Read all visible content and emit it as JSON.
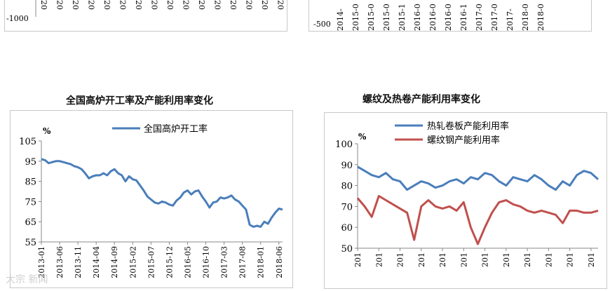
{
  "top_left_fragment": {
    "y_tick": "-1000",
    "x_ticks": [
      "20",
      "20",
      "20",
      "20",
      "20",
      "20",
      "20",
      "20",
      "20",
      "20",
      "20",
      "20",
      "20",
      "20",
      "20",
      "20"
    ]
  },
  "top_right_fragment": {
    "y_tick": "-500",
    "x_ticks": [
      "2014-",
      "2015-0",
      "2015-0",
      "2015-0",
      "2015-1",
      "2016-0",
      "2016-0",
      "2016-0",
      "2016-1",
      "2017-0",
      "2017-0",
      "2017-",
      "2018-0",
      "2018-0"
    ]
  },
  "chart_data": [
    {
      "type": "line",
      "title": "全国高炉开工率及产能利用率变化",
      "unit": "%",
      "legend_position": "top-center",
      "legend": [
        "全国高炉开工率"
      ],
      "ylim": [
        55,
        105
      ],
      "yticks": [
        55,
        65,
        75,
        85,
        95,
        105
      ],
      "x_labels": [
        "2013-01",
        "2013-06",
        "2013-11",
        "2014-04",
        "2014-09",
        "2015-02",
        "2015-07",
        "2015-12",
        "2016-05",
        "2016-10",
        "2017-03",
        "2017-08",
        "2018-01",
        "2018-06"
      ],
      "x_months": [
        0,
        5,
        10,
        15,
        20,
        25,
        30,
        35,
        40,
        45,
        50,
        55,
        60,
        65
      ],
      "series": [
        {
          "name": "全国高炉开工率",
          "color": "#4a7ebb",
          "x": [
            0,
            1,
            2,
            3,
            4,
            5,
            6,
            7,
            8,
            9,
            10,
            11,
            12,
            13,
            14,
            15,
            16,
            17,
            18,
            19,
            20,
            21,
            22,
            23,
            24,
            25,
            26,
            27,
            28,
            29,
            30,
            31,
            32,
            33,
            34,
            35,
            36,
            37,
            38,
            39,
            40,
            41,
            42,
            43,
            44,
            45,
            46,
            47,
            48,
            49,
            50,
            51,
            52,
            53,
            54,
            55,
            56,
            57,
            58,
            59,
            60,
            61,
            62,
            63,
            64,
            65,
            66
          ],
          "values": [
            96,
            95.5,
            94,
            94.5,
            95,
            95,
            94.5,
            94,
            93.5,
            92.5,
            92,
            91,
            89,
            86.5,
            87.5,
            88,
            88,
            89,
            88,
            90,
            91,
            89,
            88,
            85,
            87.5,
            86,
            85.5,
            83,
            80.5,
            77.5,
            76,
            74.5,
            74,
            75,
            74.5,
            73.5,
            73,
            75.5,
            77,
            79.5,
            80.5,
            78.5,
            80,
            80.5,
            77.5,
            75,
            72,
            74.5,
            75,
            77,
            76.5,
            77,
            78,
            76,
            75,
            73,
            71,
            63.5,
            62.5,
            63,
            62.5,
            65,
            64,
            67,
            69.5,
            71.5,
            71
          ]
        }
      ]
    },
    {
      "type": "line",
      "title": "螺纹及热卷产能利用率变化",
      "unit": "%",
      "legend_position": "top-left",
      "legend": [
        "热轧卷板产能利用率",
        "螺纹钢产能利用率"
      ],
      "ylim": [
        50,
        100
      ],
      "yticks": [
        50,
        60,
        70,
        80,
        90,
        100
      ],
      "x_labels": [
        "201",
        "201",
        "201",
        "201",
        "201",
        "201",
        "201",
        "201",
        "201",
        "201",
        "201",
        "201"
      ],
      "x_months": [
        0,
        6,
        12,
        18,
        24,
        30,
        36,
        42,
        48,
        54,
        60,
        66
      ],
      "series": [
        {
          "name": "热轧卷板产能利用率",
          "color": "#4a7ebb",
          "x": [
            0,
            2,
            4,
            6,
            8,
            10,
            12,
            14,
            16,
            18,
            20,
            22,
            24,
            26,
            28,
            30,
            32,
            34,
            36,
            38,
            40,
            42,
            44,
            46,
            48,
            50,
            52,
            54,
            56,
            58,
            60,
            62,
            64,
            66,
            68
          ],
          "values": [
            89,
            87,
            85,
            84,
            86,
            83,
            82,
            78,
            80,
            82,
            81,
            79,
            80,
            82,
            83,
            81,
            84,
            83,
            86,
            85,
            82,
            80,
            84,
            83,
            82,
            85,
            83,
            80,
            78,
            82,
            80,
            85,
            87,
            86,
            83
          ]
        },
        {
          "name": "螺纹钢产能利用率",
          "color": "#c0504d",
          "x": [
            0,
            2,
            4,
            6,
            8,
            10,
            12,
            14,
            16,
            18,
            20,
            22,
            24,
            26,
            28,
            30,
            32,
            34,
            36,
            38,
            40,
            42,
            44,
            46,
            48,
            50,
            52,
            54,
            56,
            58,
            60,
            62,
            64,
            66,
            68
          ],
          "values": [
            74,
            70,
            65,
            75,
            73,
            71,
            69,
            67,
            54,
            70,
            73,
            70,
            69,
            70,
            68,
            72,
            60,
            52,
            60,
            67,
            72,
            73,
            71,
            70,
            68,
            67,
            68,
            67,
            66,
            62,
            68,
            68,
            67,
            67,
            68
          ]
        }
      ]
    }
  ],
  "watermark": "大宗 新闻"
}
